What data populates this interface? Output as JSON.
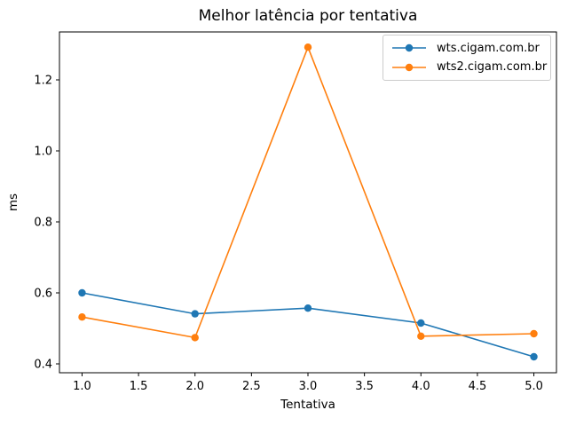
{
  "figure": {
    "background": "#ffffff",
    "axis_color": "#000000",
    "text_color": "#000000"
  },
  "chart_data": {
    "type": "line",
    "title": "Melhor latência por tentativa",
    "xlabel": "Tentativa",
    "ylabel": "ms",
    "x": [
      1,
      2,
      3,
      4,
      5
    ],
    "series": [
      {
        "name": "wts.cigam.com.br",
        "color": "#1f77b4",
        "marker": "circle",
        "values": [
          0.6,
          0.541,
          0.557,
          0.515,
          0.42
        ]
      },
      {
        "name": "wts2.cigam.com.br",
        "color": "#ff7f0e",
        "marker": "circle",
        "values": [
          0.532,
          0.474,
          1.292,
          0.478,
          0.485
        ]
      }
    ],
    "xlim": [
      0.8,
      5.2
    ],
    "ylim": [
      0.375,
      1.335
    ],
    "xticks": {
      "values": [
        1.0,
        1.5,
        2.0,
        2.5,
        3.0,
        3.5,
        4.0,
        4.5,
        5.0
      ],
      "labels": [
        "1.0",
        "1.5",
        "2.0",
        "2.5",
        "3.0",
        "3.5",
        "4.0",
        "4.5",
        "5.0"
      ]
    },
    "yticks": {
      "values": [
        0.4,
        0.6,
        0.8,
        1.0,
        1.2
      ],
      "labels": [
        "0.4",
        "0.6",
        "0.8",
        "1.0",
        "1.2"
      ]
    },
    "grid": false,
    "legend": {
      "position": "upper right"
    }
  }
}
